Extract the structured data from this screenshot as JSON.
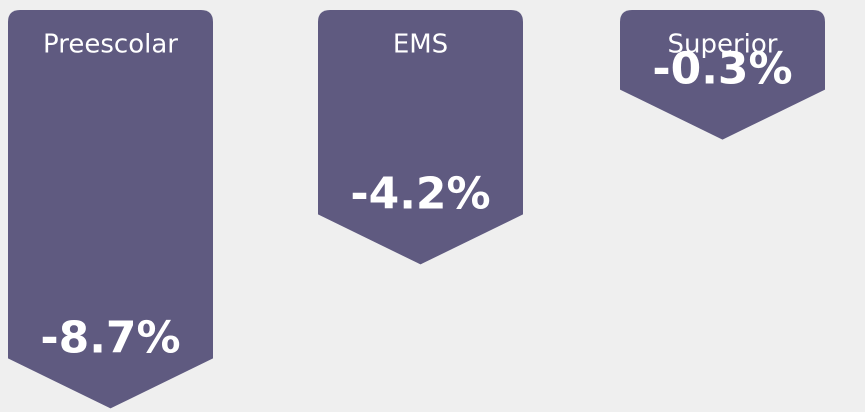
{
  "chart_data": {
    "type": "bar",
    "categories": [
      "Preescolar",
      "EMS",
      "Superior"
    ],
    "values": [
      -8.7,
      -4.2,
      -0.3
    ],
    "value_labels": [
      "-8.7%",
      "-4.2%",
      "-0.3%"
    ],
    "color": "#5f5a80"
  }
}
